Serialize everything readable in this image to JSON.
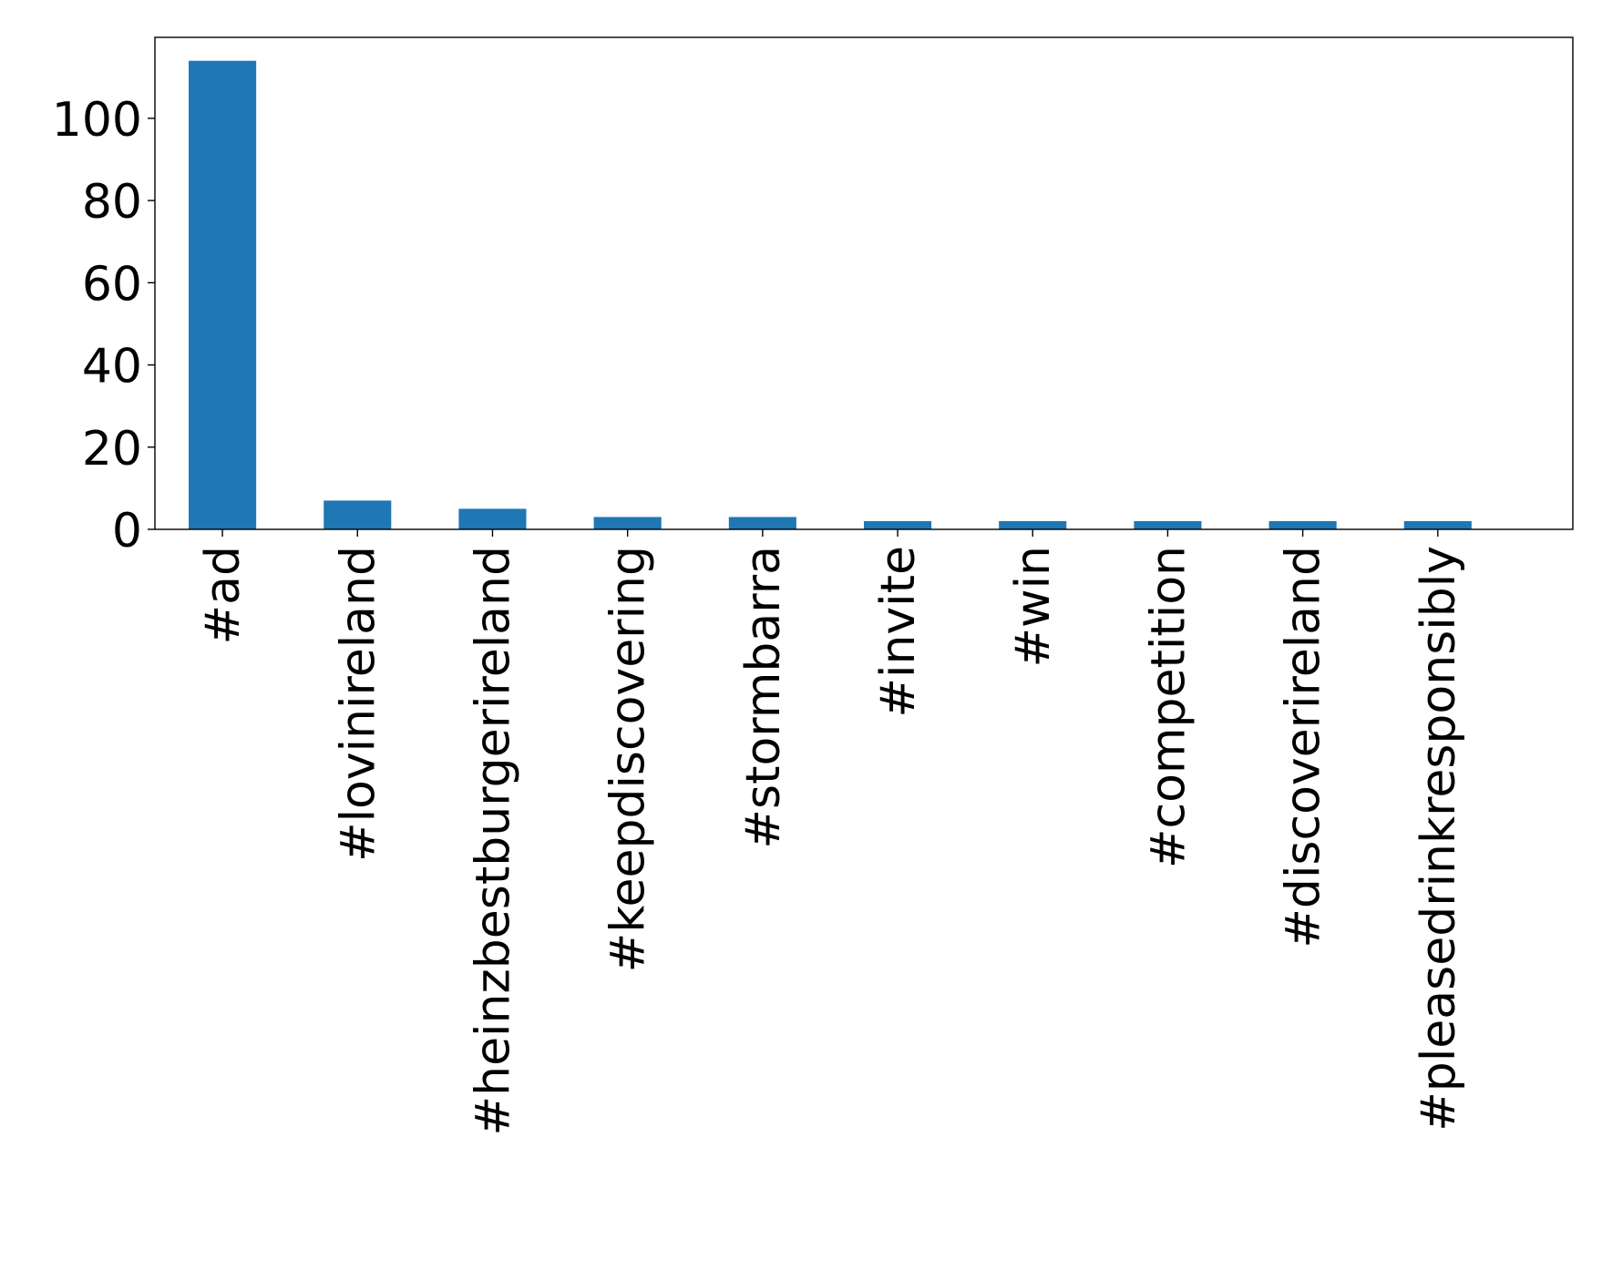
{
  "chart_data": {
    "type": "bar",
    "title": "",
    "xlabel": "",
    "ylabel": "",
    "categories": [
      "#ad",
      "#lovinireland",
      "#heinzbestburgerireland",
      "#keepdiscovering",
      "#stormbarra",
      "#invite",
      "#win",
      "#competition",
      "#discoverireland",
      "#pleasedrinkresponsibly"
    ],
    "values": [
      114,
      7,
      5,
      3,
      3,
      2,
      2,
      2,
      2,
      2
    ],
    "ylim": [
      0,
      119.7
    ],
    "yticks": [
      0,
      20,
      40,
      60,
      80,
      100
    ],
    "ytick_labels": [
      "0",
      "20",
      "40",
      "60",
      "80",
      "100"
    ],
    "grid": false,
    "legend": "none",
    "colors": {
      "bar": "#1f77b4",
      "axis": "#000000",
      "background": "#ffffff"
    }
  }
}
